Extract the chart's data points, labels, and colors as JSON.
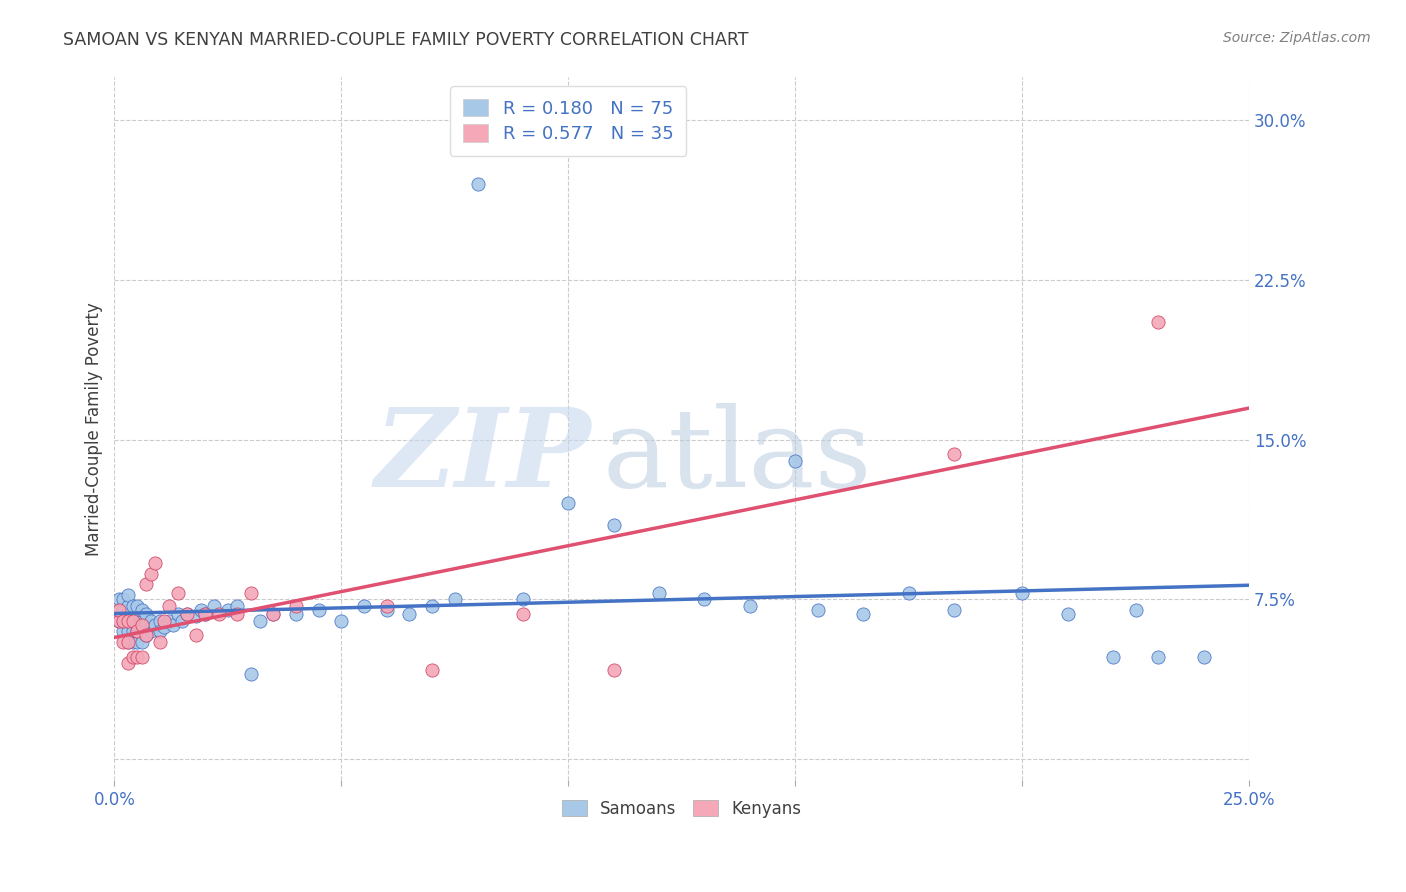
{
  "title": "SAMOAN VS KENYAN MARRIED-COUPLE FAMILY POVERTY CORRELATION CHART",
  "source": "Source: ZipAtlas.com",
  "ylabel": "Married-Couple Family Poverty",
  "xlim": [
    0.0,
    0.25
  ],
  "ylim": [
    -0.01,
    0.32
  ],
  "xticks": [
    0.0,
    0.05,
    0.1,
    0.15,
    0.2,
    0.25
  ],
  "xticklabels": [
    "0.0%",
    "",
    "",
    "",
    "",
    "25.0%"
  ],
  "yticks_right": [
    0.0,
    0.075,
    0.15,
    0.225,
    0.3
  ],
  "yticklabels_right": [
    "",
    "7.5%",
    "15.0%",
    "22.5%",
    "30.0%"
  ],
  "samoan_color": "#a8c8e8",
  "kenyan_color": "#f4a8b8",
  "samoan_edge_color": "#4472c4",
  "kenyan_edge_color": "#d04060",
  "samoan_line_color": "#4472c4",
  "kenyan_line_color": "#e05070",
  "R_samoan": 0.18,
  "N_samoan": 75,
  "R_kenyan": 0.577,
  "N_kenyan": 35,
  "background_color": "#ffffff",
  "grid_color": "#cccccc",
  "title_color": "#404040",
  "source_color": "#808080",
  "axis_label_color": "#404040",
  "tick_label_color": "#4472c4",
  "samoan_x": [
    0.001,
    0.001,
    0.001,
    0.002,
    0.002,
    0.002,
    0.002,
    0.003,
    0.003,
    0.003,
    0.003,
    0.003,
    0.003,
    0.004,
    0.004,
    0.004,
    0.004,
    0.005,
    0.005,
    0.005,
    0.005,
    0.005,
    0.006,
    0.006,
    0.006,
    0.006,
    0.007,
    0.007,
    0.007,
    0.008,
    0.008,
    0.009,
    0.01,
    0.01,
    0.011,
    0.012,
    0.013,
    0.014,
    0.015,
    0.016,
    0.018,
    0.019,
    0.02,
    0.022,
    0.025,
    0.027,
    0.03,
    0.032,
    0.035,
    0.04,
    0.045,
    0.05,
    0.055,
    0.06,
    0.065,
    0.07,
    0.075,
    0.08,
    0.09,
    0.1,
    0.11,
    0.12,
    0.13,
    0.14,
    0.15,
    0.155,
    0.165,
    0.175,
    0.185,
    0.2,
    0.21,
    0.22,
    0.225,
    0.23,
    0.24
  ],
  "samoan_y": [
    0.065,
    0.07,
    0.075,
    0.06,
    0.065,
    0.07,
    0.075,
    0.055,
    0.06,
    0.065,
    0.068,
    0.072,
    0.077,
    0.055,
    0.06,
    0.065,
    0.072,
    0.055,
    0.06,
    0.063,
    0.067,
    0.072,
    0.055,
    0.06,
    0.065,
    0.07,
    0.058,
    0.063,
    0.068,
    0.06,
    0.065,
    0.063,
    0.06,
    0.065,
    0.062,
    0.065,
    0.063,
    0.068,
    0.065,
    0.068,
    0.067,
    0.07,
    0.068,
    0.072,
    0.07,
    0.072,
    0.04,
    0.065,
    0.068,
    0.068,
    0.07,
    0.065,
    0.072,
    0.07,
    0.068,
    0.072,
    0.075,
    0.27,
    0.075,
    0.12,
    0.11,
    0.078,
    0.075,
    0.072,
    0.14,
    0.07,
    0.068,
    0.078,
    0.07,
    0.078,
    0.068,
    0.048,
    0.07,
    0.048,
    0.048
  ],
  "kenyan_x": [
    0.001,
    0.001,
    0.002,
    0.002,
    0.003,
    0.003,
    0.003,
    0.004,
    0.004,
    0.005,
    0.005,
    0.006,
    0.006,
    0.007,
    0.007,
    0.008,
    0.009,
    0.01,
    0.011,
    0.012,
    0.014,
    0.016,
    0.018,
    0.02,
    0.023,
    0.027,
    0.03,
    0.035,
    0.04,
    0.06,
    0.07,
    0.09,
    0.11,
    0.185,
    0.23
  ],
  "kenyan_y": [
    0.065,
    0.07,
    0.055,
    0.065,
    0.045,
    0.055,
    0.065,
    0.048,
    0.065,
    0.048,
    0.06,
    0.048,
    0.063,
    0.058,
    0.082,
    0.087,
    0.092,
    0.055,
    0.065,
    0.072,
    0.078,
    0.068,
    0.058,
    0.068,
    0.068,
    0.068,
    0.078,
    0.068,
    0.072,
    0.072,
    0.042,
    0.068,
    0.042,
    0.143,
    0.205
  ]
}
